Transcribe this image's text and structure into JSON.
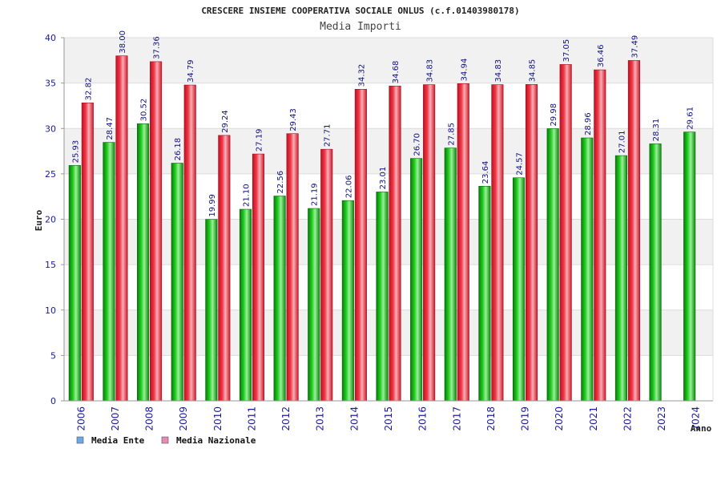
{
  "chart_data": {
    "type": "bar",
    "title": "CRESCERE INSIEME COOPERATIVA SOCIALE ONLUS (c.f.01403980178)",
    "subtitle": "Media Importi",
    "xlabel": "Anno",
    "ylabel": "Euro",
    "ylim": [
      0,
      40
    ],
    "yticks": [
      0,
      5,
      10,
      15,
      20,
      25,
      30,
      35,
      40
    ],
    "grid": true,
    "legend_position": "bottom-left",
    "categories": [
      "2006",
      "2007",
      "2008",
      "2009",
      "2010",
      "2011",
      "2012",
      "2013",
      "2014",
      "2015",
      "2016",
      "2017",
      "2018",
      "2019",
      "2020",
      "2021",
      "2022",
      "2023",
      "2024"
    ],
    "series": [
      {
        "name": "Media Ente",
        "color": "#10b010",
        "legend_color": "#6aa8e8",
        "values": [
          25.93,
          28.47,
          30.52,
          26.18,
          19.99,
          21.1,
          22.56,
          21.19,
          22.06,
          23.01,
          26.7,
          27.85,
          23.64,
          24.57,
          29.98,
          28.96,
          27.01,
          28.31,
          29.61
        ],
        "labels": [
          "25.93",
          "28.47",
          "30.52",
          "26.18",
          "19.99",
          "21.10",
          "22.56",
          "21.19",
          "22.06",
          "23.01",
          "26.70",
          "27.85",
          "23.64",
          "24.57",
          "29.98",
          "28.96",
          "27.01",
          "28.31",
          "29.61"
        ]
      },
      {
        "name": "Media Nazionale",
        "color": "#e02030",
        "legend_color": "#e88ab8",
        "values": [
          32.82,
          38.0,
          37.36,
          34.79,
          29.24,
          27.19,
          29.43,
          27.71,
          34.32,
          34.68,
          34.83,
          34.94,
          34.83,
          34.85,
          37.05,
          36.46,
          37.49,
          null,
          null
        ],
        "labels": [
          "32.82",
          "38.00",
          "37.36",
          "34.79",
          "29.24",
          "27.19",
          "29.43",
          "27.71",
          "34.32",
          "34.68",
          "34.83",
          "34.94",
          "34.83",
          "34.85",
          "37.05",
          "36.46",
          "37.49",
          null,
          null
        ]
      }
    ]
  }
}
